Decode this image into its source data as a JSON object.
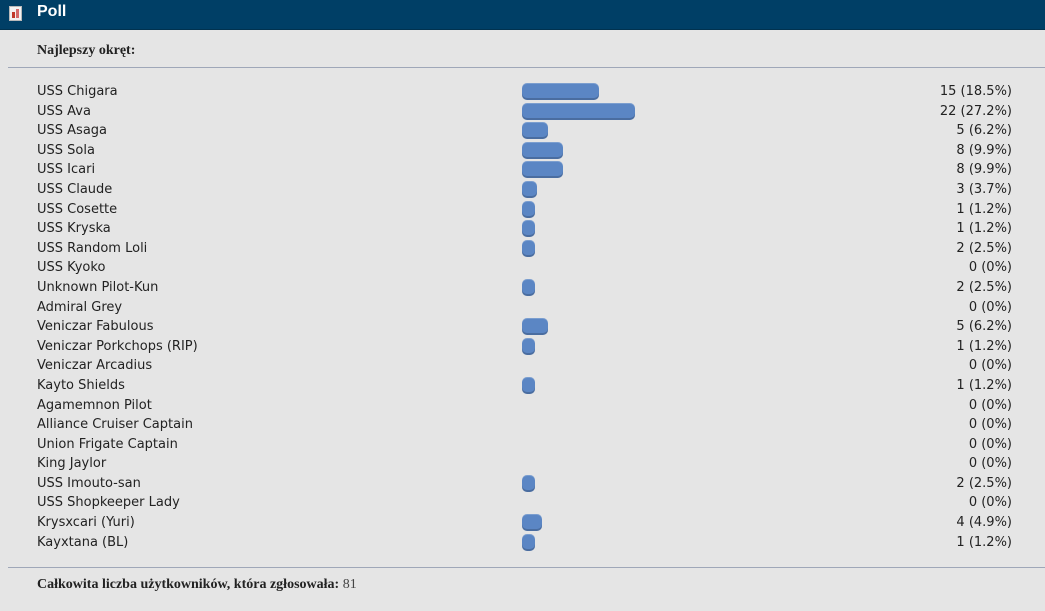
{
  "window": {
    "title": "Poll",
    "icon": "poll-icon"
  },
  "poll": {
    "question": "Najlepszy okręt:",
    "options": [
      {
        "label": "USS Chigara",
        "votes": 15,
        "percent": 18.5,
        "count_text": "15 (18.5%)"
      },
      {
        "label": "USS Ava",
        "votes": 22,
        "percent": 27.2,
        "count_text": "22 (27.2%)"
      },
      {
        "label": "USS Asaga",
        "votes": 5,
        "percent": 6.2,
        "count_text": "5 (6.2%)"
      },
      {
        "label": "USS Sola",
        "votes": 8,
        "percent": 9.9,
        "count_text": "8 (9.9%)"
      },
      {
        "label": "USS Icari",
        "votes": 8,
        "percent": 9.9,
        "count_text": "8 (9.9%)"
      },
      {
        "label": "USS Claude",
        "votes": 3,
        "percent": 3.7,
        "count_text": "3 (3.7%)"
      },
      {
        "label": "USS Cosette",
        "votes": 1,
        "percent": 1.2,
        "count_text": "1 (1.2%)"
      },
      {
        "label": "USS Kryska",
        "votes": 1,
        "percent": 1.2,
        "count_text": "1 (1.2%)"
      },
      {
        "label": "USS Random Loli",
        "votes": 2,
        "percent": 2.5,
        "count_text": "2 (2.5%)"
      },
      {
        "label": "USS Kyoko",
        "votes": 0,
        "percent": 0,
        "count_text": "0 (0%)"
      },
      {
        "label": "Unknown Pilot-Kun",
        "votes": 2,
        "percent": 2.5,
        "count_text": "2 (2.5%)"
      },
      {
        "label": "Admiral Grey",
        "votes": 0,
        "percent": 0,
        "count_text": "0 (0%)"
      },
      {
        "label": "Veniczar Fabulous",
        "votes": 5,
        "percent": 6.2,
        "count_text": "5 (6.2%)"
      },
      {
        "label": "Veniczar Porkchops (RIP)",
        "votes": 1,
        "percent": 1.2,
        "count_text": "1 (1.2%)"
      },
      {
        "label": "Veniczar Arcadius",
        "votes": 0,
        "percent": 0,
        "count_text": "0 (0%)"
      },
      {
        "label": "Kayto Shields",
        "votes": 1,
        "percent": 1.2,
        "count_text": "1 (1.2%)"
      },
      {
        "label": "Agamemnon Pilot",
        "votes": 0,
        "percent": 0,
        "count_text": "0 (0%)"
      },
      {
        "label": "Alliance Cruiser Captain",
        "votes": 0,
        "percent": 0,
        "count_text": "0 (0%)"
      },
      {
        "label": "Union Frigate Captain",
        "votes": 0,
        "percent": 0,
        "count_text": "0 (0%)"
      },
      {
        "label": "King Jaylor",
        "votes": 0,
        "percent": 0,
        "count_text": "0 (0%)"
      },
      {
        "label": "USS Imouto-san",
        "votes": 2,
        "percent": 2.5,
        "count_text": "2 (2.5%)"
      },
      {
        "label": "USS Shopkeeper Lady",
        "votes": 0,
        "percent": 0,
        "count_text": "0 (0%)"
      },
      {
        "label": "Krysxcari (Yuri)",
        "votes": 4,
        "percent": 4.9,
        "count_text": "4 (4.9%)"
      },
      {
        "label": "Kayxtana (BL)",
        "votes": 1,
        "percent": 1.2,
        "count_text": "1 (1.2%)"
      }
    ],
    "total_label": "Całkowita liczba użytkowników, która zgłosowała:",
    "total_value": "81"
  },
  "colors": {
    "header": "#003f66",
    "bar": "#5b86c4",
    "background": "#e5e5e5"
  }
}
